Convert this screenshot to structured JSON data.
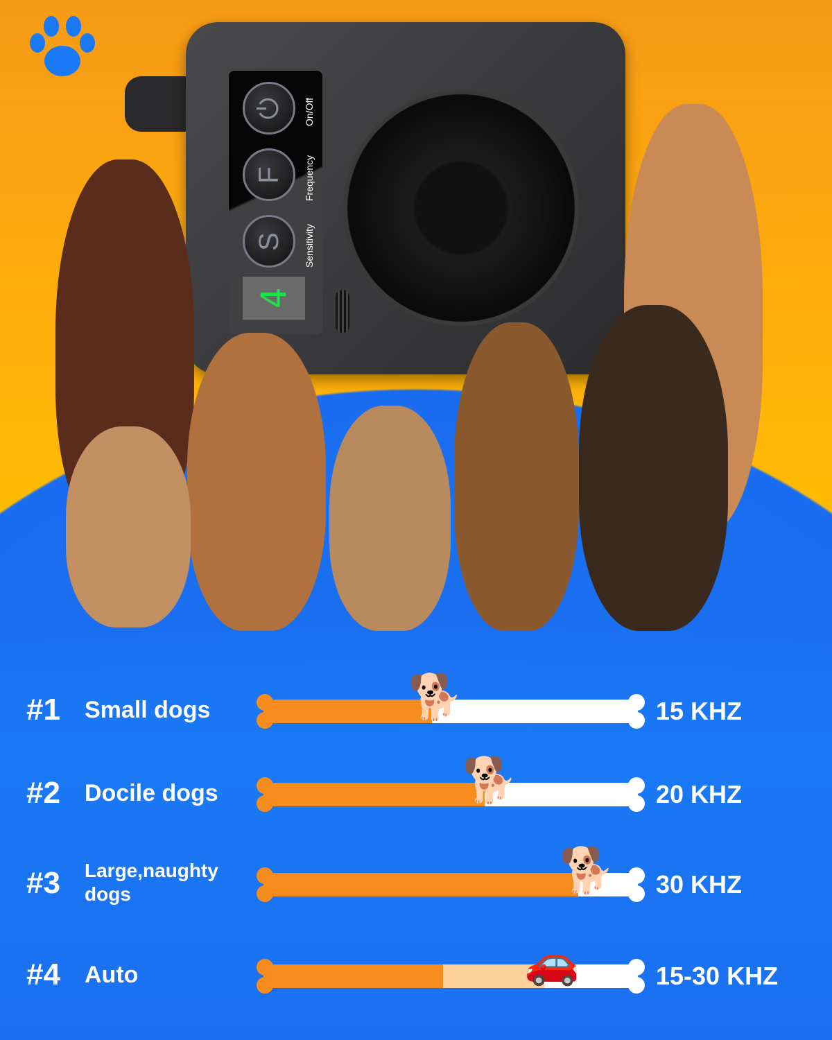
{
  "brand_icon": "paw-icon",
  "device": {
    "buttons": [
      {
        "letter": "",
        "label": "On/Off",
        "icon": "power-icon"
      },
      {
        "letter": "F",
        "label": "Frequency"
      },
      {
        "letter": "S",
        "label": "Sensitivity"
      }
    ],
    "display_value": "4"
  },
  "modes": [
    {
      "number": "#1",
      "label": "Small dogs",
      "frequency": "15 KHZ",
      "level": 0.45,
      "icon": "small-dog-icon"
    },
    {
      "number": "#2",
      "label": "Docile dogs",
      "frequency": "20 KHZ",
      "level": 0.59,
      "icon": "dog-icon"
    },
    {
      "number": "#3",
      "label": "Large,naughty dogs",
      "frequency": "30 KHZ",
      "level": 0.84,
      "icon": "large-dog-icon"
    },
    {
      "number": "#4",
      "label": "Auto",
      "frequency": "15-30 KHZ",
      "level": 0.48,
      "level_range": [
        0.48,
        0.75
      ],
      "icon": "car-icon"
    }
  ],
  "colors": {
    "orange": "#f68c1e",
    "blue": "#1a6ff0",
    "light_orange": "#fcd19c"
  }
}
